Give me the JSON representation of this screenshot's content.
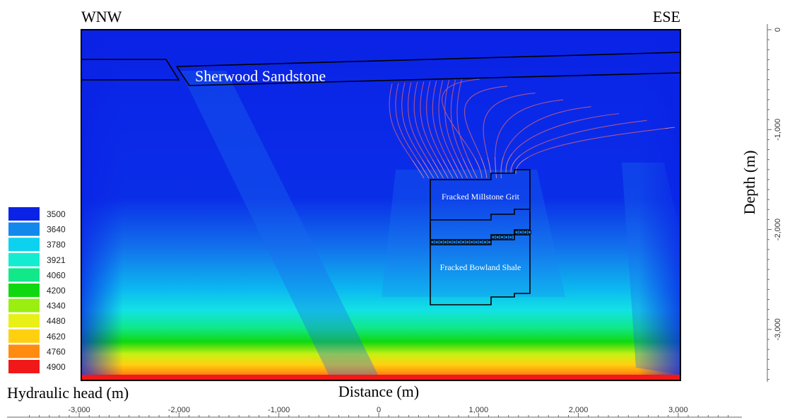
{
  "chart_data": {
    "type": "heatmap",
    "title": "",
    "orientation_labels": {
      "left": "WNW",
      "right": "ESE"
    },
    "xlabel": "Distance (m)",
    "ylabel": "Depth (m)",
    "colorbar_label": "Hydraulic head (m)",
    "xlim": [
      -3000,
      3000
    ],
    "ylim": [
      0,
      3500
    ],
    "x_ticks": [
      {
        "value": -3000,
        "label": "-3,000"
      },
      {
        "value": -2000,
        "label": "-2,000"
      },
      {
        "value": -1000,
        "label": "-1,000"
      },
      {
        "value": 0,
        "label": "0"
      },
      {
        "value": 1000,
        "label": "1,000"
      },
      {
        "value": 2000,
        "label": "2,000"
      },
      {
        "value": 3000,
        "label": "3,000"
      }
    ],
    "y_ticks": [
      {
        "value": 0,
        "label": "0"
      },
      {
        "value": 1000,
        "label": "-1,000"
      },
      {
        "value": 2000,
        "label": "-2,000"
      },
      {
        "value": 3000,
        "label": "-3,000"
      }
    ],
    "legend": [
      {
        "value": "3500",
        "color": "#0a22e6"
      },
      {
        "value": "3640",
        "color": "#1288ec"
      },
      {
        "value": "3780",
        "color": "#0cd2f0"
      },
      {
        "value": "3921",
        "color": "#14ecd0"
      },
      {
        "value": "4060",
        "color": "#10e88a"
      },
      {
        "value": "4200",
        "color": "#10d810"
      },
      {
        "value": "4340",
        "color": "#9aee10"
      },
      {
        "value": "4480",
        "color": "#e8f016"
      },
      {
        "value": "4620",
        "color": "#ffd010"
      },
      {
        "value": "4760",
        "color": "#ff8c10"
      },
      {
        "value": "4900",
        "color": "#f01818"
      }
    ],
    "annotations": [
      {
        "id": "sherwood",
        "text": "Sherwood Sandstone"
      },
      {
        "id": "millstone",
        "text": "Fracked Millstone Grit"
      },
      {
        "id": "bowland",
        "text": "Fracked Bowland Shale"
      }
    ],
    "flowpath_count": 20
  }
}
